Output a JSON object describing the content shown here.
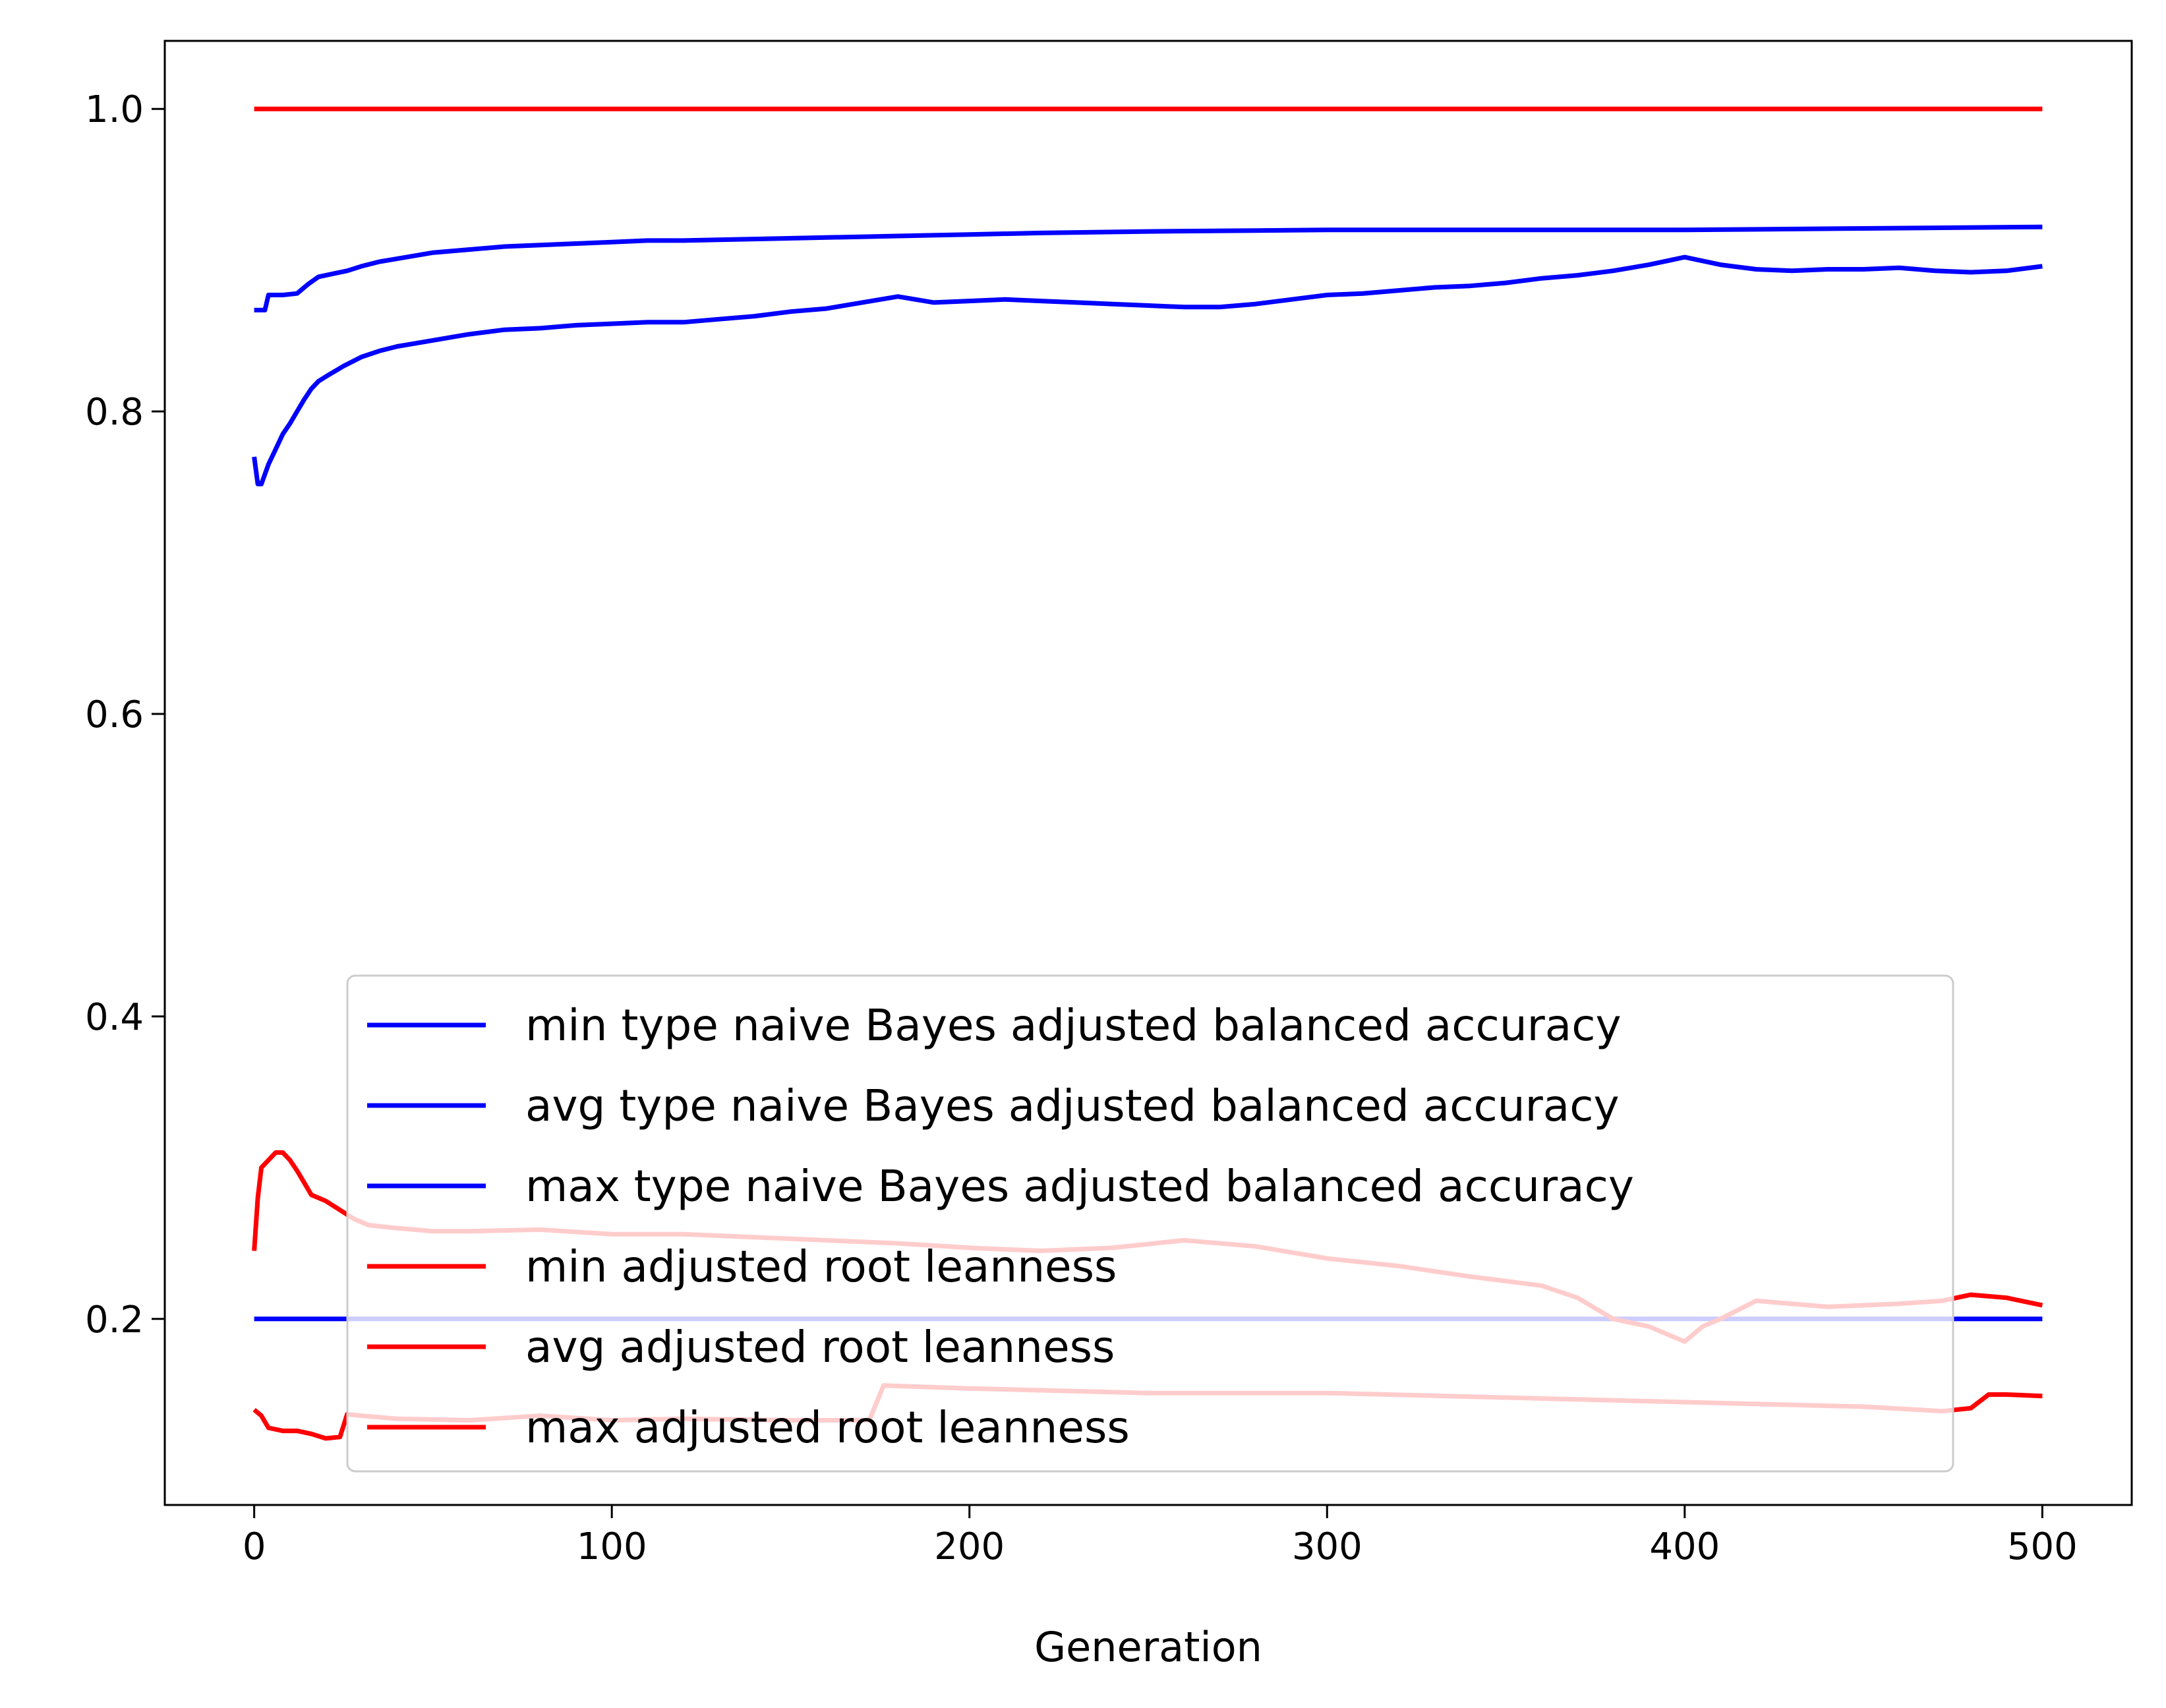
{
  "chart_data": {
    "type": "line",
    "title": "",
    "xlabel": "Generation",
    "ylabel": "",
    "xlim": [
      -25,
      525
    ],
    "ylim": [
      0.077,
      1.045
    ],
    "xticks": [
      0,
      100,
      200,
      300,
      400,
      500
    ],
    "yticks": [
      0.2,
      0.4,
      0.6,
      0.8,
      1.0
    ],
    "xtick_labels": [
      "0",
      "100",
      "200",
      "300",
      "400",
      "500"
    ],
    "ytick_labels": [
      "0.2",
      "0.4",
      "0.6",
      "0.8",
      "1.0"
    ],
    "grid": false,
    "legend_position": "lower center",
    "series": [
      {
        "name": "min type naive Bayes adjusted balanced accuracy",
        "color": "#0000ff",
        "x": [
          0,
          500
        ],
        "y": [
          0.2,
          0.2
        ]
      },
      {
        "name": "avg type naive Bayes adjusted balanced accuracy",
        "color": "#0000ff",
        "x": [
          0,
          1,
          2,
          4,
          6,
          8,
          10,
          12,
          14,
          16,
          18,
          20,
          25,
          30,
          35,
          40,
          45,
          50,
          55,
          60,
          70,
          80,
          90,
          100,
          110,
          120,
          130,
          140,
          150,
          160,
          170,
          180,
          190,
          200,
          210,
          220,
          230,
          240,
          250,
          260,
          270,
          280,
          290,
          300,
          310,
          320,
          330,
          340,
          350,
          360,
          370,
          380,
          390,
          400,
          410,
          420,
          430,
          440,
          450,
          460,
          470,
          480,
          490,
          500
        ],
        "y": [
          0.77,
          0.752,
          0.752,
          0.765,
          0.775,
          0.785,
          0.792,
          0.8,
          0.808,
          0.815,
          0.82,
          0.823,
          0.83,
          0.836,
          0.84,
          0.843,
          0.845,
          0.847,
          0.849,
          0.851,
          0.854,
          0.855,
          0.857,
          0.858,
          0.859,
          0.859,
          0.861,
          0.863,
          0.866,
          0.868,
          0.872,
          0.876,
          0.872,
          0.873,
          0.874,
          0.873,
          0.872,
          0.871,
          0.87,
          0.869,
          0.869,
          0.871,
          0.874,
          0.877,
          0.878,
          0.88,
          0.882,
          0.883,
          0.885,
          0.888,
          0.89,
          0.893,
          0.897,
          0.902,
          0.897,
          0.894,
          0.893,
          0.894,
          0.894,
          0.895,
          0.893,
          0.892,
          0.893,
          0.896
        ]
      },
      {
        "name": "max type naive Bayes adjusted balanced accuracy",
        "color": "#0000ff",
        "x": [
          0,
          3,
          4,
          8,
          12,
          15,
          18,
          22,
          26,
          30,
          35,
          40,
          45,
          50,
          60,
          70,
          80,
          90,
          100,
          110,
          120,
          140,
          160,
          180,
          200,
          220,
          250,
          300,
          350,
          400,
          450,
          500
        ],
        "y": [
          0.867,
          0.867,
          0.877,
          0.877,
          0.878,
          0.884,
          0.889,
          0.891,
          0.893,
          0.896,
          0.899,
          0.901,
          0.903,
          0.905,
          0.907,
          0.909,
          0.91,
          0.911,
          0.912,
          0.913,
          0.913,
          0.914,
          0.915,
          0.916,
          0.917,
          0.918,
          0.919,
          0.92,
          0.92,
          0.92,
          0.921,
          0.922
        ]
      },
      {
        "name": "min adjusted root leanness",
        "color": "#ff0000",
        "x": [
          0,
          2,
          4,
          8,
          12,
          16,
          20,
          24,
          26,
          30,
          40,
          60,
          80,
          100,
          120,
          150,
          172,
          176,
          200,
          250,
          300,
          350,
          400,
          450,
          472,
          480,
          485,
          490,
          500
        ],
        "y": [
          0.14,
          0.136,
          0.128,
          0.126,
          0.126,
          0.124,
          0.121,
          0.122,
          0.137,
          0.136,
          0.134,
          0.133,
          0.136,
          0.133,
          0.134,
          0.133,
          0.133,
          0.156,
          0.154,
          0.151,
          0.151,
          0.148,
          0.145,
          0.142,
          0.139,
          0.141,
          0.15,
          0.15,
          0.149
        ]
      },
      {
        "name": "avg adjusted root leanness",
        "color": "#ff0000",
        "x": [
          0,
          1,
          2,
          4,
          6,
          8,
          10,
          12,
          14,
          16,
          18,
          20,
          24,
          28,
          32,
          40,
          50,
          60,
          80,
          100,
          120,
          140,
          160,
          180,
          200,
          220,
          240,
          260,
          280,
          300,
          320,
          340,
          360,
          370,
          380,
          390,
          400,
          405,
          410,
          420,
          440,
          460,
          472,
          480,
          490,
          500
        ],
        "y": [
          0.245,
          0.28,
          0.3,
          0.305,
          0.31,
          0.31,
          0.305,
          0.298,
          0.29,
          0.282,
          0.28,
          0.278,
          0.272,
          0.266,
          0.262,
          0.26,
          0.258,
          0.258,
          0.259,
          0.256,
          0.256,
          0.254,
          0.252,
          0.25,
          0.247,
          0.245,
          0.247,
          0.252,
          0.248,
          0.24,
          0.235,
          0.228,
          0.222,
          0.214,
          0.2,
          0.195,
          0.185,
          0.195,
          0.2,
          0.212,
          0.208,
          0.21,
          0.212,
          0.216,
          0.214,
          0.209
        ]
      },
      {
        "name": "max adjusted root leanness",
        "color": "#ff0000",
        "x": [
          0,
          500
        ],
        "y": [
          1.0,
          1.0
        ]
      }
    ]
  }
}
